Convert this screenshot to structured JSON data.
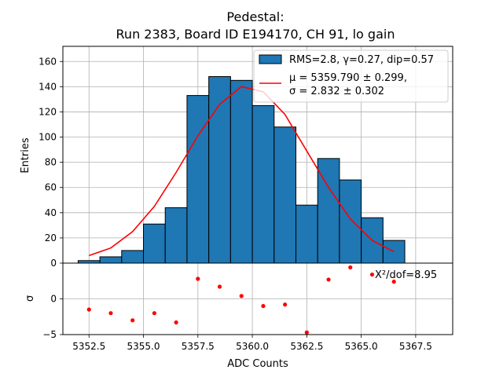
{
  "chart_data": {
    "type": "bar",
    "title_line1": "Pedestal:",
    "title_line2": "Run 2383, Board ID E194170, CH 91, lo gain",
    "xlabel": "ADC Counts",
    "ylabel_main": "Entries",
    "ylabel_resid": "σ",
    "xlim": [
      5351.3,
      5369.2
    ],
    "ylim_main": [
      0,
      172
    ],
    "ylim_resid": [
      -5,
      5
    ],
    "xticks": [
      5352.5,
      5355.0,
      5357.5,
      5360.0,
      5362.5,
      5365.0,
      5367.5
    ],
    "xtick_labels": [
      "5352.5",
      "5355.0",
      "5357.5",
      "5360.0",
      "5362.5",
      "5365.0",
      "5367.5"
    ],
    "yticks_main": [
      0,
      20,
      40,
      60,
      80,
      100,
      120,
      140,
      160
    ],
    "ytick_labels_main": [
      "0",
      "20",
      "40",
      "60",
      "80",
      "100",
      "120",
      "140",
      "160"
    ],
    "yticks_resid": [
      -5,
      0
    ],
    "ytick_labels_resid": [
      "−5",
      "0"
    ],
    "grid": true,
    "histogram": {
      "name": "RMS=2.8, γ=0.27, dip=0.57",
      "color": "#1f77b4",
      "bin_edges": [
        5352,
        5353,
        5354,
        5355,
        5356,
        5357,
        5358,
        5359,
        5360,
        5361,
        5362,
        5363,
        5364,
        5365,
        5366,
        5367
      ],
      "values": [
        2,
        5,
        10,
        31,
        44,
        133,
        148,
        145,
        125,
        108,
        46,
        83,
        66,
        36,
        18
      ]
    },
    "fit": {
      "label_mu": "μ = 5359.790 ± 0.299,",
      "label_sigma": "σ = 2.832 ± 0.302",
      "color": "#ff0000",
      "x": [
        5352.5,
        5353.5,
        5354.5,
        5355.5,
        5356.5,
        5357.5,
        5358.5,
        5359.5,
        5360.5,
        5361.5,
        5362.5,
        5363.5,
        5364.5,
        5365.5,
        5366.5
      ],
      "y": [
        6,
        12,
        25,
        45,
        72,
        101,
        126,
        140,
        136,
        118,
        89,
        60,
        35,
        18,
        9
      ]
    },
    "residuals": {
      "color": "#ff0000",
      "x": [
        5352.5,
        5353.5,
        5354.5,
        5355.5,
        5356.5,
        5357.5,
        5358.5,
        5359.5,
        5360.5,
        5361.5,
        5362.5,
        5363.5,
        5364.5,
        5365.5,
        5366.5
      ],
      "y": [
        -1.5,
        -2.0,
        -3.0,
        -2.0,
        -3.3,
        2.8,
        1.7,
        0.4,
        -1.0,
        -0.8,
        -4.7,
        2.7,
        4.4,
        3.4,
        2.4
      ]
    },
    "chi2_label": "X²/dof=8.95",
    "legend_position": "top-right"
  }
}
